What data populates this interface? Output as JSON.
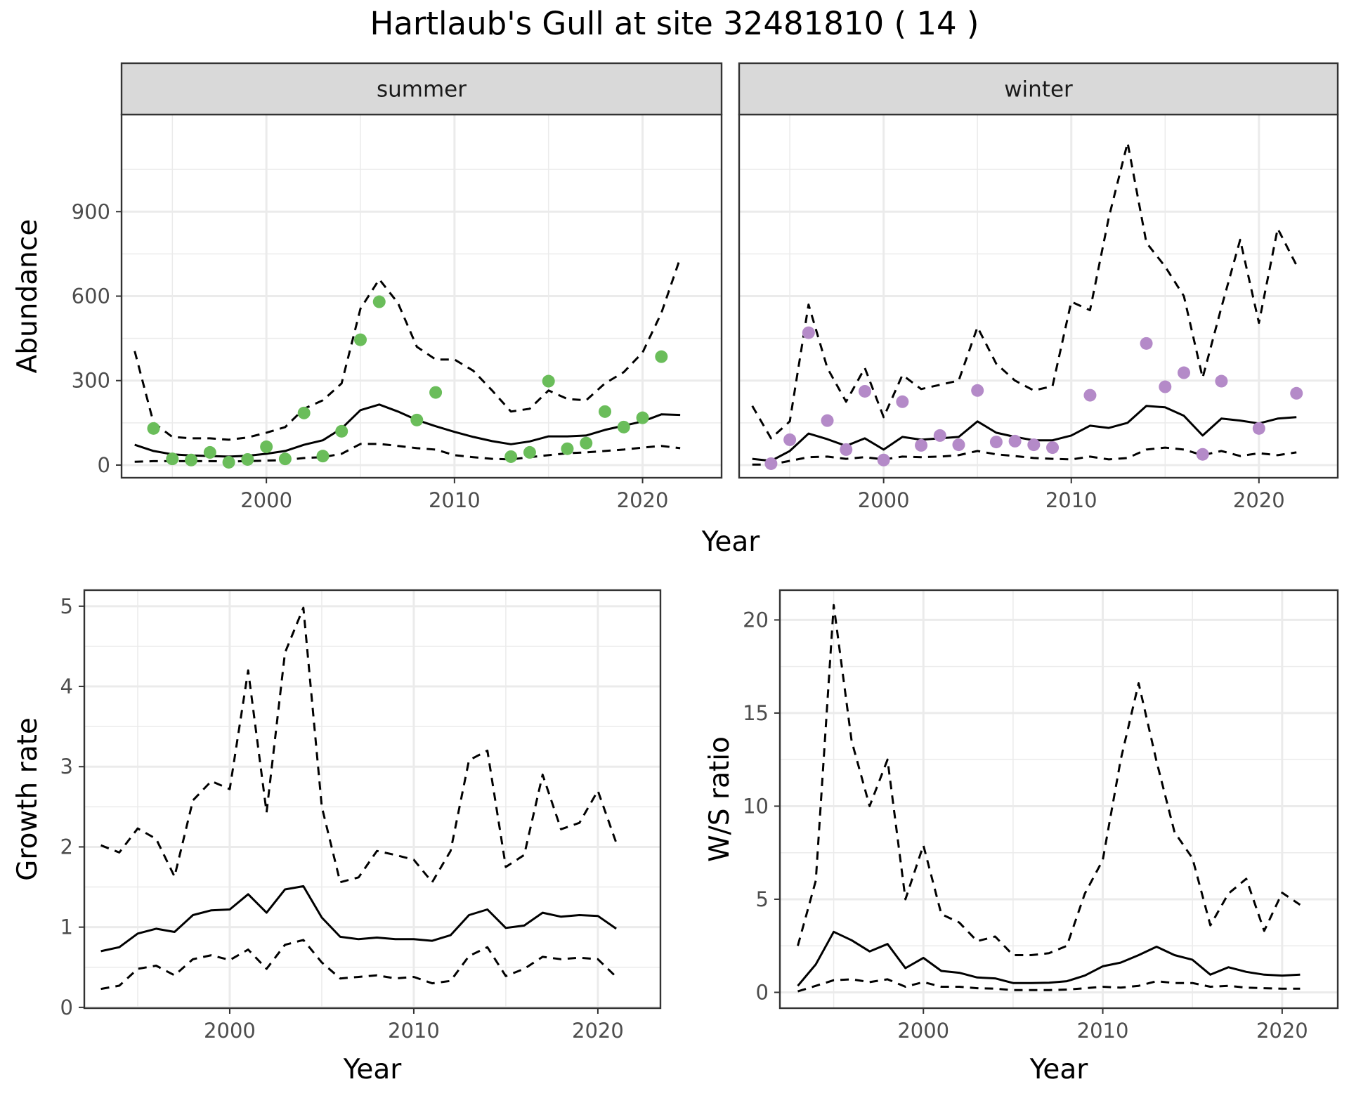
{
  "title": "Hartlaub's Gull at site 32481810 ( 14 )",
  "colors": {
    "summer_points": "#6ABD5A",
    "winter_points": "#B48AC8",
    "line": "#000000",
    "strip": "#D9D9D9",
    "grid": "#EBEBEB"
  },
  "chart_data": [
    {
      "type": "line",
      "panel": "summer",
      "facet_label": "summer",
      "xlabel": "Year",
      "ylabel": "Abundance",
      "xlim": [
        1992.3,
        2024.2
      ],
      "ylim": [
        -45,
        1245
      ],
      "x_ticks": [
        2000,
        2010,
        2020
      ],
      "y_ticks": [
        0,
        300,
        600,
        900
      ],
      "grid": true,
      "series": [
        {
          "style": "solid",
          "x": [
            1993,
            1994,
            1995,
            1996,
            1997,
            1998,
            1999,
            2000,
            2001,
            2002,
            2003,
            2004,
            2005,
            2006,
            2007,
            2008,
            2009,
            2010,
            2011,
            2012,
            2013,
            2014,
            2015,
            2016,
            2017,
            2018,
            2019,
            2020,
            2021,
            2022
          ],
          "y": [
            72,
            50,
            38,
            34,
            32,
            30,
            33,
            40,
            50,
            72,
            88,
            130,
            195,
            215,
            190,
            160,
            138,
            118,
            100,
            85,
            74,
            84,
            102,
            102,
            105,
            125,
            140,
            155,
            180,
            178
          ]
        },
        {
          "style": "dashed",
          "x": [
            1993,
            1994,
            1995,
            1996,
            1997,
            1998,
            1999,
            2000,
            2001,
            2002,
            2003,
            2004,
            2005,
            2006,
            2007,
            2008,
            2009,
            2010,
            2011,
            2012,
            2013,
            2014,
            2015,
            2016,
            2017,
            2018,
            2019,
            2020,
            2021,
            2022
          ],
          "y": [
            405,
            150,
            100,
            95,
            95,
            90,
            98,
            115,
            135,
            200,
            230,
            290,
            555,
            660,
            575,
            420,
            375,
            375,
            335,
            265,
            190,
            200,
            265,
            235,
            230,
            290,
            330,
            400,
            540,
            735
          ]
        },
        {
          "style": "dashed",
          "x": [
            1993,
            1994,
            1995,
            1996,
            1997,
            1998,
            1999,
            2000,
            2001,
            2002,
            2003,
            2004,
            2005,
            2006,
            2007,
            2008,
            2009,
            2010,
            2011,
            2012,
            2013,
            2014,
            2015,
            2016,
            2017,
            2018,
            2019,
            2020,
            2021,
            2022
          ],
          "y": [
            12,
            14,
            14,
            14,
            14,
            13,
            14,
            16,
            18,
            25,
            28,
            40,
            75,
            75,
            68,
            60,
            55,
            35,
            28,
            22,
            20,
            28,
            35,
            42,
            45,
            50,
            55,
            62,
            68,
            60
          ]
        },
        {
          "style": "points",
          "x": [
            1994,
            1995,
            1996,
            1997,
            1998,
            1999,
            2000,
            2001,
            2002,
            2003,
            2004,
            2005,
            2006,
            2008,
            2009,
            2013,
            2014,
            2015,
            2016,
            2017,
            2018,
            2019,
            2020,
            2021
          ],
          "y": [
            130,
            22,
            18,
            45,
            10,
            20,
            65,
            22,
            185,
            32,
            120,
            445,
            580,
            160,
            258,
            30,
            45,
            298,
            58,
            78,
            190,
            135,
            168,
            385
          ]
        }
      ]
    },
    {
      "type": "line",
      "panel": "winter",
      "facet_label": "winter",
      "xlabel": "Year",
      "ylabel": "Abundance",
      "xlim": [
        1992.3,
        2024.2
      ],
      "ylim": [
        -45,
        1245
      ],
      "x_ticks": [
        2000,
        2010,
        2020
      ],
      "y_ticks": [
        0,
        300,
        600,
        900
      ],
      "grid": true,
      "series": [
        {
          "style": "solid",
          "x": [
            1993,
            1994,
            1995,
            1996,
            1997,
            1998,
            1999,
            2000,
            2001,
            2002,
            2003,
            2004,
            2005,
            2006,
            2007,
            2008,
            2009,
            2010,
            2011,
            2012,
            2013,
            2014,
            2015,
            2016,
            2017,
            2018,
            2019,
            2020,
            2021,
            2022
          ],
          "y": [
            22,
            15,
            50,
            112,
            92,
            68,
            95,
            55,
            100,
            90,
            95,
            100,
            155,
            115,
            100,
            88,
            88,
            105,
            140,
            132,
            150,
            210,
            205,
            175,
            105,
            165,
            158,
            148,
            165,
            170
          ]
        },
        {
          "style": "dashed",
          "x": [
            1993,
            1994,
            1995,
            1996,
            1997,
            1998,
            1999,
            2000,
            2001,
            2002,
            2003,
            2004,
            2005,
            2006,
            2007,
            2008,
            2009,
            2010,
            2011,
            2012,
            2013,
            2014,
            2015,
            2016,
            2017,
            2018,
            2019,
            2020,
            2021,
            2022
          ],
          "y": [
            210,
            95,
            155,
            570,
            345,
            225,
            345,
            170,
            320,
            270,
            285,
            300,
            490,
            360,
            300,
            265,
            280,
            580,
            550,
            880,
            1145,
            790,
            705,
            600,
            310,
            560,
            800,
            505,
            840,
            710
          ]
        },
        {
          "style": "dashed",
          "x": [
            1993,
            1994,
            1995,
            1996,
            1997,
            1998,
            1999,
            2000,
            2001,
            2002,
            2003,
            2004,
            2005,
            2006,
            2007,
            2008,
            2009,
            2010,
            2011,
            2012,
            2013,
            2014,
            2015,
            2016,
            2017,
            2018,
            2019,
            2020,
            2021,
            2022
          ],
          "y": [
            2,
            2,
            15,
            28,
            30,
            22,
            28,
            20,
            30,
            28,
            30,
            35,
            50,
            38,
            32,
            25,
            22,
            20,
            30,
            20,
            25,
            55,
            62,
            55,
            35,
            50,
            32,
            42,
            35,
            45
          ]
        },
        {
          "style": "points",
          "x": [
            1994,
            1995,
            1996,
            1997,
            1998,
            1999,
            2000,
            2001,
            2002,
            2003,
            2004,
            2005,
            2006,
            2007,
            2008,
            2009,
            2011,
            2014,
            2015,
            2016,
            2017,
            2018,
            2020,
            2022
          ],
          "y": [
            5,
            90,
            470,
            158,
            55,
            262,
            18,
            225,
            70,
            105,
            72,
            265,
            82,
            85,
            72,
            62,
            248,
            432,
            278,
            328,
            38,
            298,
            130,
            255
          ]
        }
      ]
    },
    {
      "type": "line",
      "panel": "growth",
      "xlabel": "Year",
      "ylabel": "Growth rate",
      "xlim": [
        1992.1,
        2023.4
      ],
      "ylim": [
        -0.01,
        5.2
      ],
      "x_ticks": [
        2000,
        2010,
        2020
      ],
      "y_ticks": [
        0,
        1,
        2,
        3,
        4,
        5
      ],
      "grid": true,
      "series": [
        {
          "style": "solid",
          "x": [
            1993,
            1994,
            1995,
            1996,
            1997,
            1998,
            1999,
            2000,
            2001,
            2002,
            2003,
            2004,
            2005,
            2006,
            2007,
            2008,
            2009,
            2010,
            2011,
            2012,
            2013,
            2014,
            2015,
            2016,
            2017,
            2018,
            2019,
            2020,
            2021
          ],
          "y": [
            0.7,
            0.75,
            0.92,
            0.98,
            0.94,
            1.15,
            1.21,
            1.22,
            1.41,
            1.18,
            1.47,
            1.51,
            1.12,
            0.88,
            0.85,
            0.87,
            0.85,
            0.85,
            0.83,
            0.9,
            1.15,
            1.22,
            0.99,
            1.02,
            1.18,
            1.13,
            1.15,
            1.14,
            0.98
          ]
        },
        {
          "style": "dashed",
          "x": [
            1993,
            1994,
            1995,
            1996,
            1997,
            1998,
            1999,
            2000,
            2001,
            2002,
            2003,
            2004,
            2005,
            2006,
            2007,
            2008,
            2009,
            2010,
            2011,
            2012,
            2013,
            2014,
            2015,
            2016,
            2017,
            2018,
            2019,
            2020,
            2021
          ],
          "y": [
            2.02,
            1.93,
            2.23,
            2.1,
            1.63,
            2.58,
            2.82,
            2.72,
            4.2,
            2.43,
            4.42,
            4.98,
            2.5,
            1.56,
            1.62,
            1.95,
            1.9,
            1.84,
            1.56,
            1.95,
            3.08,
            3.2,
            1.75,
            1.9,
            2.9,
            2.22,
            2.3,
            2.7,
            2.05
          ]
        },
        {
          "style": "dashed",
          "x": [
            1993,
            1994,
            1995,
            1996,
            1997,
            1998,
            1999,
            2000,
            2001,
            2002,
            2003,
            2004,
            2005,
            2006,
            2007,
            2008,
            2009,
            2010,
            2011,
            2012,
            2013,
            2014,
            2015,
            2016,
            2017,
            2018,
            2019,
            2020,
            2021
          ],
          "y": [
            0.23,
            0.27,
            0.48,
            0.52,
            0.4,
            0.6,
            0.65,
            0.59,
            0.72,
            0.48,
            0.78,
            0.84,
            0.56,
            0.36,
            0.38,
            0.4,
            0.36,
            0.38,
            0.3,
            0.33,
            0.64,
            0.75,
            0.39,
            0.48,
            0.63,
            0.6,
            0.62,
            0.6,
            0.38
          ]
        }
      ]
    },
    {
      "type": "line",
      "panel": "ratio",
      "xlabel": "Year",
      "ylabel": "W/S ratio",
      "xlim": [
        1992.0,
        2023.1
      ],
      "ylim": [
        -0.85,
        21.6
      ],
      "x_ticks": [
        2000,
        2010,
        2020
      ],
      "y_ticks": [
        0,
        5,
        10,
        15,
        20
      ],
      "grid": true,
      "series": [
        {
          "style": "solid",
          "x": [
            1993,
            1994,
            1995,
            1996,
            1997,
            1998,
            1999,
            2000,
            2001,
            2002,
            2003,
            2004,
            2005,
            2006,
            2007,
            2008,
            2009,
            2010,
            2011,
            2012,
            2013,
            2014,
            2015,
            2016,
            2017,
            2018,
            2019,
            2020,
            2021
          ],
          "y": [
            0.35,
            1.5,
            3.25,
            2.8,
            2.2,
            2.6,
            1.3,
            1.85,
            1.15,
            1.05,
            0.8,
            0.75,
            0.5,
            0.5,
            0.52,
            0.6,
            0.9,
            1.4,
            1.6,
            2.0,
            2.45,
            2.0,
            1.75,
            0.95,
            1.35,
            1.1,
            0.95,
            0.9,
            0.95
          ]
        },
        {
          "style": "dashed",
          "x": [
            1993,
            1994,
            1995,
            1996,
            1997,
            1998,
            1999,
            2000,
            2001,
            2002,
            2003,
            2004,
            2005,
            2006,
            2007,
            2008,
            2009,
            2010,
            2011,
            2012,
            2013,
            2014,
            2015,
            2016,
            2017,
            2018,
            2019,
            2020,
            2021
          ],
          "y": [
            2.5,
            6.0,
            20.8,
            13.5,
            10.0,
            12.5,
            5.0,
            7.9,
            4.2,
            3.75,
            2.75,
            3.0,
            2.0,
            2.0,
            2.1,
            2.5,
            5.3,
            7.1,
            12.5,
            16.6,
            12.4,
            8.6,
            7.2,
            3.6,
            5.3,
            6.1,
            3.3,
            5.35,
            4.7
          ]
        },
        {
          "style": "dashed",
          "x": [
            1993,
            1994,
            1995,
            1996,
            1997,
            1998,
            1999,
            2000,
            2001,
            2002,
            2003,
            2004,
            2005,
            2006,
            2007,
            2008,
            2009,
            2010,
            2011,
            2012,
            2013,
            2014,
            2015,
            2016,
            2017,
            2018,
            2019,
            2020,
            2021
          ],
          "y": [
            0.05,
            0.35,
            0.65,
            0.7,
            0.55,
            0.7,
            0.3,
            0.55,
            0.3,
            0.3,
            0.22,
            0.2,
            0.12,
            0.12,
            0.12,
            0.15,
            0.22,
            0.3,
            0.25,
            0.35,
            0.6,
            0.5,
            0.5,
            0.3,
            0.35,
            0.25,
            0.22,
            0.2,
            0.2
          ]
        }
      ]
    }
  ]
}
